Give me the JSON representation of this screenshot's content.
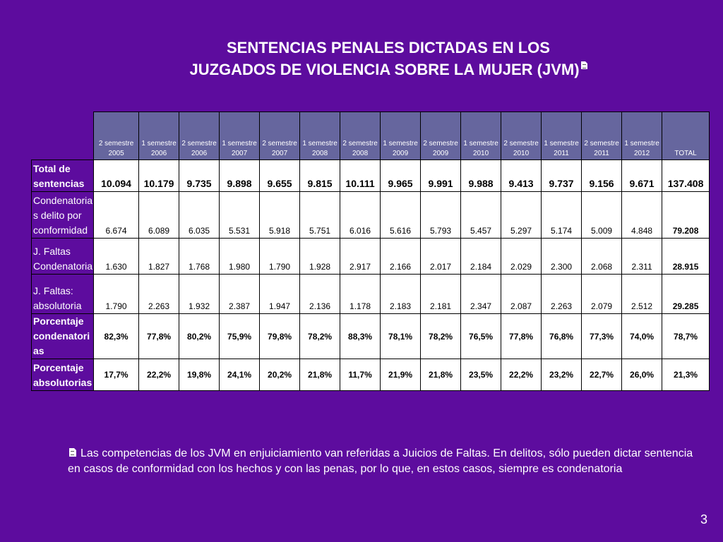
{
  "title": {
    "line1": "SENTENCIAS PENALES DICTADAS EN LOS",
    "line2": "JUZGADOS DE VIOLENCIA SOBRE LA MUJER (JVM)",
    "note_icon": "document-icon"
  },
  "table": {
    "headers": [
      {
        "line1": "2 semestre",
        "line2": "2005"
      },
      {
        "line1": "1 semestre",
        "line2": "2006"
      },
      {
        "line1": "2 semestre",
        "line2": "2006"
      },
      {
        "line1": "1 semestre",
        "line2": "2007"
      },
      {
        "line1": "2 semestre",
        "line2": "2007"
      },
      {
        "line1": "1 semestre",
        "line2": "2008"
      },
      {
        "line1": "2 semestre",
        "line2": "2008"
      },
      {
        "line1": "1 semestre",
        "line2": "2009"
      },
      {
        "line1": "2 semestre",
        "line2": "2009"
      },
      {
        "line1": "1 semestre",
        "line2": "2010"
      },
      {
        "line1": "2 semestre",
        "line2": "2010"
      },
      {
        "line1": "1 semestre",
        "line2": "2011"
      },
      {
        "line1": "2 semestre",
        "line2": "2011"
      },
      {
        "line1": "1 semestre",
        "line2": "2012"
      },
      {
        "line1": "",
        "line2": "TOTAL"
      }
    ],
    "rows": [
      {
        "label_lines": [
          "Total de",
          "sentencias"
        ],
        "values": [
          "10.094",
          "10.179",
          "9.735",
          "9.898",
          "9.655",
          "9.815",
          "10.111",
          "9.965",
          "9.991",
          "9.988",
          "9.413",
          "9.737",
          "9.156",
          "9.671",
          "137.408"
        ]
      },
      {
        "label_lines": [
          "Condenatoria",
          "s  delito por",
          "conformidad"
        ],
        "values": [
          "6.674",
          "6.089",
          "6.035",
          "5.531",
          "5.918",
          "5.751",
          "6.016",
          "5.616",
          "5.793",
          "5.457",
          "5.297",
          "5.174",
          "5.009",
          "4.848",
          "79.208"
        ]
      },
      {
        "label_lines": [
          "J. Faltas",
          "Condenatoria"
        ],
        "values": [
          "1.630",
          "1.827",
          "1.768",
          "1.980",
          "1.790",
          "1.928",
          "2.917",
          "2.166",
          "2.017",
          "2.184",
          "2.029",
          "2.300",
          "2.068",
          "2.311",
          "28.915"
        ]
      },
      {
        "label_lines": [
          "J. Faltas:",
          "absolutoria"
        ],
        "values": [
          "1.790",
          "2.263",
          "1.932",
          "2.387",
          "1.947",
          "2.136",
          "1.178",
          "2.183",
          "2.181",
          "2.347",
          "2.087",
          "2.263",
          "2.079",
          "2.512",
          "29.285"
        ]
      },
      {
        "label_lines": [
          "Porcentaje",
          "condenatori",
          "as"
        ],
        "values": [
          "82,3%",
          "77,8%",
          "80,2%",
          "75,9%",
          "79,8%",
          "78,2%",
          "88,3%",
          "78,1%",
          "78,2%",
          "76,5%",
          "77,8%",
          "76,8%",
          "77,3%",
          "74,0%",
          "78,7%"
        ]
      },
      {
        "label_lines": [
          "Porcentaje",
          "absolutorias"
        ],
        "values": [
          "17,7%",
          "22,2%",
          "19,8%",
          "24,1%",
          "20,2%",
          "21,8%",
          "11,7%",
          "21,9%",
          "21,8%",
          "23,5%",
          "22,2%",
          "23,2%",
          "22,7%",
          "26,0%",
          "21,3%"
        ]
      }
    ]
  },
  "footnote": {
    "text": "Las competencias de los JVM en enjuiciamiento van referidas a Juicios de Faltas. En delitos, sólo pueden dictar sentencia en casos de conformidad con los hechos y con las penas, por lo que, en estos casos, siempre es condenatoria"
  },
  "page_number": "3",
  "colors": {
    "background": "#5d0c9e",
    "header_cell": "#66669e",
    "cell": "#ffffff"
  }
}
